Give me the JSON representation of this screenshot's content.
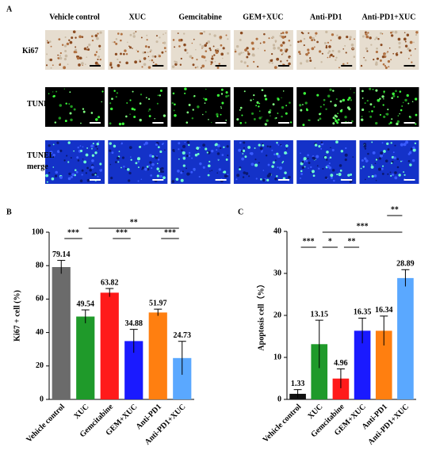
{
  "panel_a": {
    "panel_label": "A",
    "columns": [
      "Vehicle control",
      "XUC",
      "Gemcitabine",
      "GEM+XUC",
      "Anti-PD1",
      "Anti-PD1+XUC"
    ],
    "rows": [
      "Ki67",
      "TUNEL",
      "TUNEL merge"
    ]
  },
  "chart_data": [
    {
      "type": "bar",
      "panel_label": "B",
      "y_label": "Ki67 + cell (%)",
      "categories": [
        "Vehicle control",
        "XUC",
        "Gemcitabine",
        "GEM+XUC",
        "Anti-PD1",
        "Anti-PD1+XUC"
      ],
      "values": [
        79.14,
        49.54,
        63.82,
        34.88,
        51.97,
        24.73
      ],
      "errors": [
        4,
        4,
        2.5,
        7,
        2,
        10
      ],
      "colors": [
        "#6b6b6b",
        "#1f9a2a",
        "#ff1a1a",
        "#1a1aff",
        "#ff7f10",
        "#5aa8ff"
      ],
      "ylim": [
        0,
        100
      ],
      "yticks": [
        0,
        20,
        40,
        60,
        80,
        100
      ],
      "annotations": [
        {
          "text": "***",
          "from": 0,
          "to": 1
        },
        {
          "text": "**",
          "from": 1,
          "to": 5
        },
        {
          "text": "***",
          "from": 2,
          "to": 3
        },
        {
          "text": "***",
          "from": 4,
          "to": 5
        }
      ]
    },
    {
      "type": "bar",
      "panel_label": "C",
      "y_label": "Apoptosis cell（%）",
      "categories": [
        "Vehicle control",
        "XUC",
        "Gemcitabine",
        "GEM+XUC",
        "Anti-PD1",
        "Anti-PD1+XUC"
      ],
      "values": [
        1.33,
        13.15,
        4.96,
        16.35,
        16.34,
        28.89
      ],
      "errors": [
        1,
        5.7,
        2.3,
        3,
        3.5,
        2
      ],
      "colors": [
        "#111111",
        "#1f9a2a",
        "#ff1a1a",
        "#1a1aff",
        "#ff7f10",
        "#5aa8ff"
      ],
      "ylim": [
        0,
        40
      ],
      "yticks": [
        0,
        10,
        20,
        30,
        40
      ],
      "annotations": [
        {
          "text": "***",
          "from": 0,
          "to": 1
        },
        {
          "text": "*",
          "from": 1,
          "to": 2
        },
        {
          "text": "**",
          "from": 2,
          "to": 3
        },
        {
          "text": "***",
          "from": 1,
          "to": 5
        },
        {
          "text": "**",
          "from": 4,
          "to": 5
        }
      ]
    }
  ]
}
